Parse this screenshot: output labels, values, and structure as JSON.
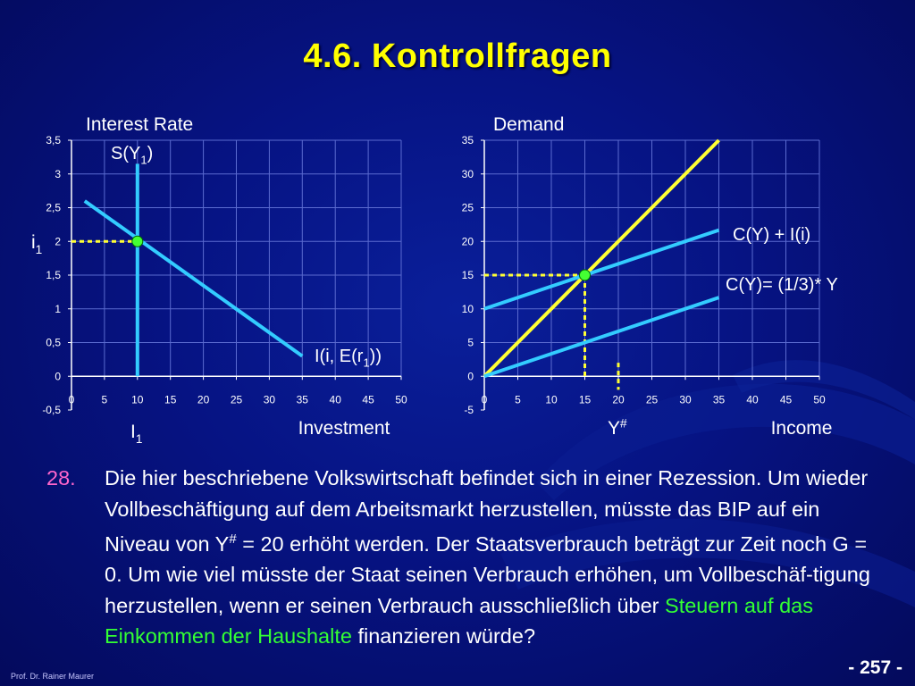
{
  "slide": {
    "title": "4.6. Kontrollfragen",
    "page_number": "- 257 -",
    "author": "Prof. Dr. Rainer Maurer"
  },
  "colors": {
    "background": "#061383",
    "title": "#ffff00",
    "line_cyan": "#33ccff",
    "line_yellow": "#ffff33",
    "marker": "#44ff33",
    "question_number": "#ff66cc",
    "highlight_green": "#33ff33"
  },
  "question": {
    "number": "28.",
    "text_part1": "Die hier beschriebene Volkswirtschaft befindet sich in einer Rezession. Um wieder Vollbeschäftigung auf dem Arbeitsmarkt herzustellen, müsste das BIP auf ein Niveau von Y",
    "superscript": "#",
    "text_part2": " = 20 erhöht werden. Der Staatsverbrauch beträgt zur Zeit noch G = 0. Um wie viel müsste der Staat seinen Verbrauch erhöhen, um Vollbeschäf-tigung herzustellen, wenn er seinen Verbrauch ausschließlich über ",
    "highlight": "Steuern auf das Einkommen der Haushalte",
    "text_part3": " finanzieren würde?"
  },
  "chart_data": [
    {
      "type": "line",
      "title": "",
      "ylabel": "Interest Rate",
      "xlabel": "Investment",
      "xlim": [
        0,
        50
      ],
      "ylim": [
        -0.5,
        3.5
      ],
      "x_ticks": [
        0,
        5,
        10,
        15,
        20,
        25,
        30,
        35,
        40,
        45,
        50
      ],
      "y_ticks": [
        -0.5,
        0,
        0.5,
        1,
        1.5,
        2,
        2.5,
        3,
        3.5
      ],
      "y_tick_labels": [
        "-0,5",
        "0",
        "0,5",
        "1",
        "1,5",
        "2",
        "2,5",
        "3",
        "3,5"
      ],
      "grid": true,
      "series": [
        {
          "name": "I(i, E(r1))",
          "label_main": "I(i, E(r",
          "label_sub": "1",
          "label_end": "))",
          "color": "#33ccff",
          "points": [
            [
              2,
              2.6
            ],
            [
              35,
              0.3
            ]
          ]
        },
        {
          "name": "S(Y1)",
          "label_main": "S(Y",
          "label_sub": "1",
          "label_end": ")",
          "color": "#33ccff",
          "points": [
            [
              10,
              0
            ],
            [
              10,
              3.15
            ]
          ]
        }
      ],
      "guides": [
        {
          "color": "#ffff33",
          "points": [
            [
              0,
              2
            ],
            [
              10,
              2
            ]
          ]
        }
      ],
      "markers": [
        [
          10,
          2
        ]
      ],
      "annotations": [
        {
          "main": "i",
          "sub": "1",
          "axis": "y",
          "value": 2
        },
        {
          "main": "I",
          "sub": "1",
          "axis": "x",
          "value": 10
        }
      ]
    },
    {
      "type": "line",
      "title": "",
      "ylabel": "Demand",
      "xlabel": "Income",
      "xlim": [
        0,
        50
      ],
      "ylim": [
        -5,
        35
      ],
      "x_ticks": [
        0,
        5,
        10,
        15,
        20,
        25,
        30,
        35,
        40,
        45,
        50
      ],
      "y_ticks": [
        -5,
        0,
        5,
        10,
        15,
        20,
        25,
        30,
        35
      ],
      "y_tick_labels": [
        "-5",
        "0",
        "5",
        "10",
        "15",
        "20",
        "25",
        "30",
        "35"
      ],
      "grid": true,
      "series": [
        {
          "name": "45-degree line",
          "color": "#ffff33",
          "points": [
            [
              0,
              0
            ],
            [
              35,
              35
            ]
          ]
        },
        {
          "name": "C(Y) + I(i)",
          "label_main": "C(Y) + I(i)",
          "color": "#33ccff",
          "points": [
            [
              0,
              10
            ],
            [
              35,
              21.67
            ]
          ]
        },
        {
          "name": "C(Y)= (1/3)* Y",
          "label_main": "C(Y)= (1/3)* Y",
          "color": "#33ccff",
          "points": [
            [
              0,
              0
            ],
            [
              35,
              11.67
            ]
          ]
        }
      ],
      "guides": [
        {
          "color": "#ffff33",
          "points": [
            [
              0,
              15
            ],
            [
              15,
              15
            ]
          ]
        },
        {
          "color": "#ffff33",
          "points": [
            [
              15,
              15
            ],
            [
              15,
              0
            ]
          ]
        },
        {
          "color": "#ffff33",
          "points": [
            [
              20,
              2
            ],
            [
              20,
              -2
            ]
          ]
        }
      ],
      "markers": [
        [
          15,
          15
        ]
      ],
      "annotations": [
        {
          "main": "Y",
          "sup": "#",
          "axis": "x",
          "value": 20
        }
      ]
    }
  ]
}
